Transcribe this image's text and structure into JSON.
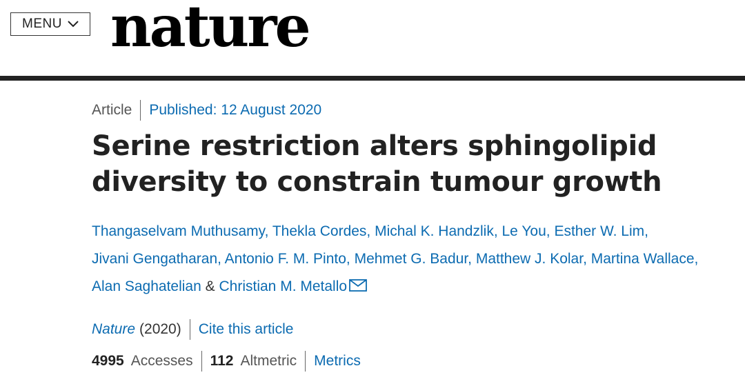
{
  "header": {
    "menu_label": "MENU",
    "logo_text": "nature"
  },
  "article": {
    "type": "Article",
    "published": "Published: 12 August 2020",
    "title_line1": "Serine restriction alters sphingolipid",
    "title_line2": "diversity to constrain tumour growth",
    "authors": [
      "Thangaselvam Muthusamy",
      "Thekla Cordes",
      "Michal K. Handzlik",
      "Le You",
      "Esther W. Lim",
      "Jivani Gengatharan",
      "Antonio F. M. Pinto",
      "Mehmet G. Badur",
      "Matthew J. Kolar",
      "Martina Wallace",
      "Alan Saghatelian",
      "Christian M. Metallo"
    ],
    "amp": "&",
    "journal": "Nature",
    "year": "(2020)",
    "cite": "Cite this article",
    "accesses_count": "4995",
    "accesses_label": "Accesses",
    "altmetric_count": "112",
    "altmetric_label": "Altmetric",
    "metrics_link": "Metrics"
  },
  "icons": {
    "menu": "chevron-down-icon",
    "email": "envelope-icon"
  }
}
